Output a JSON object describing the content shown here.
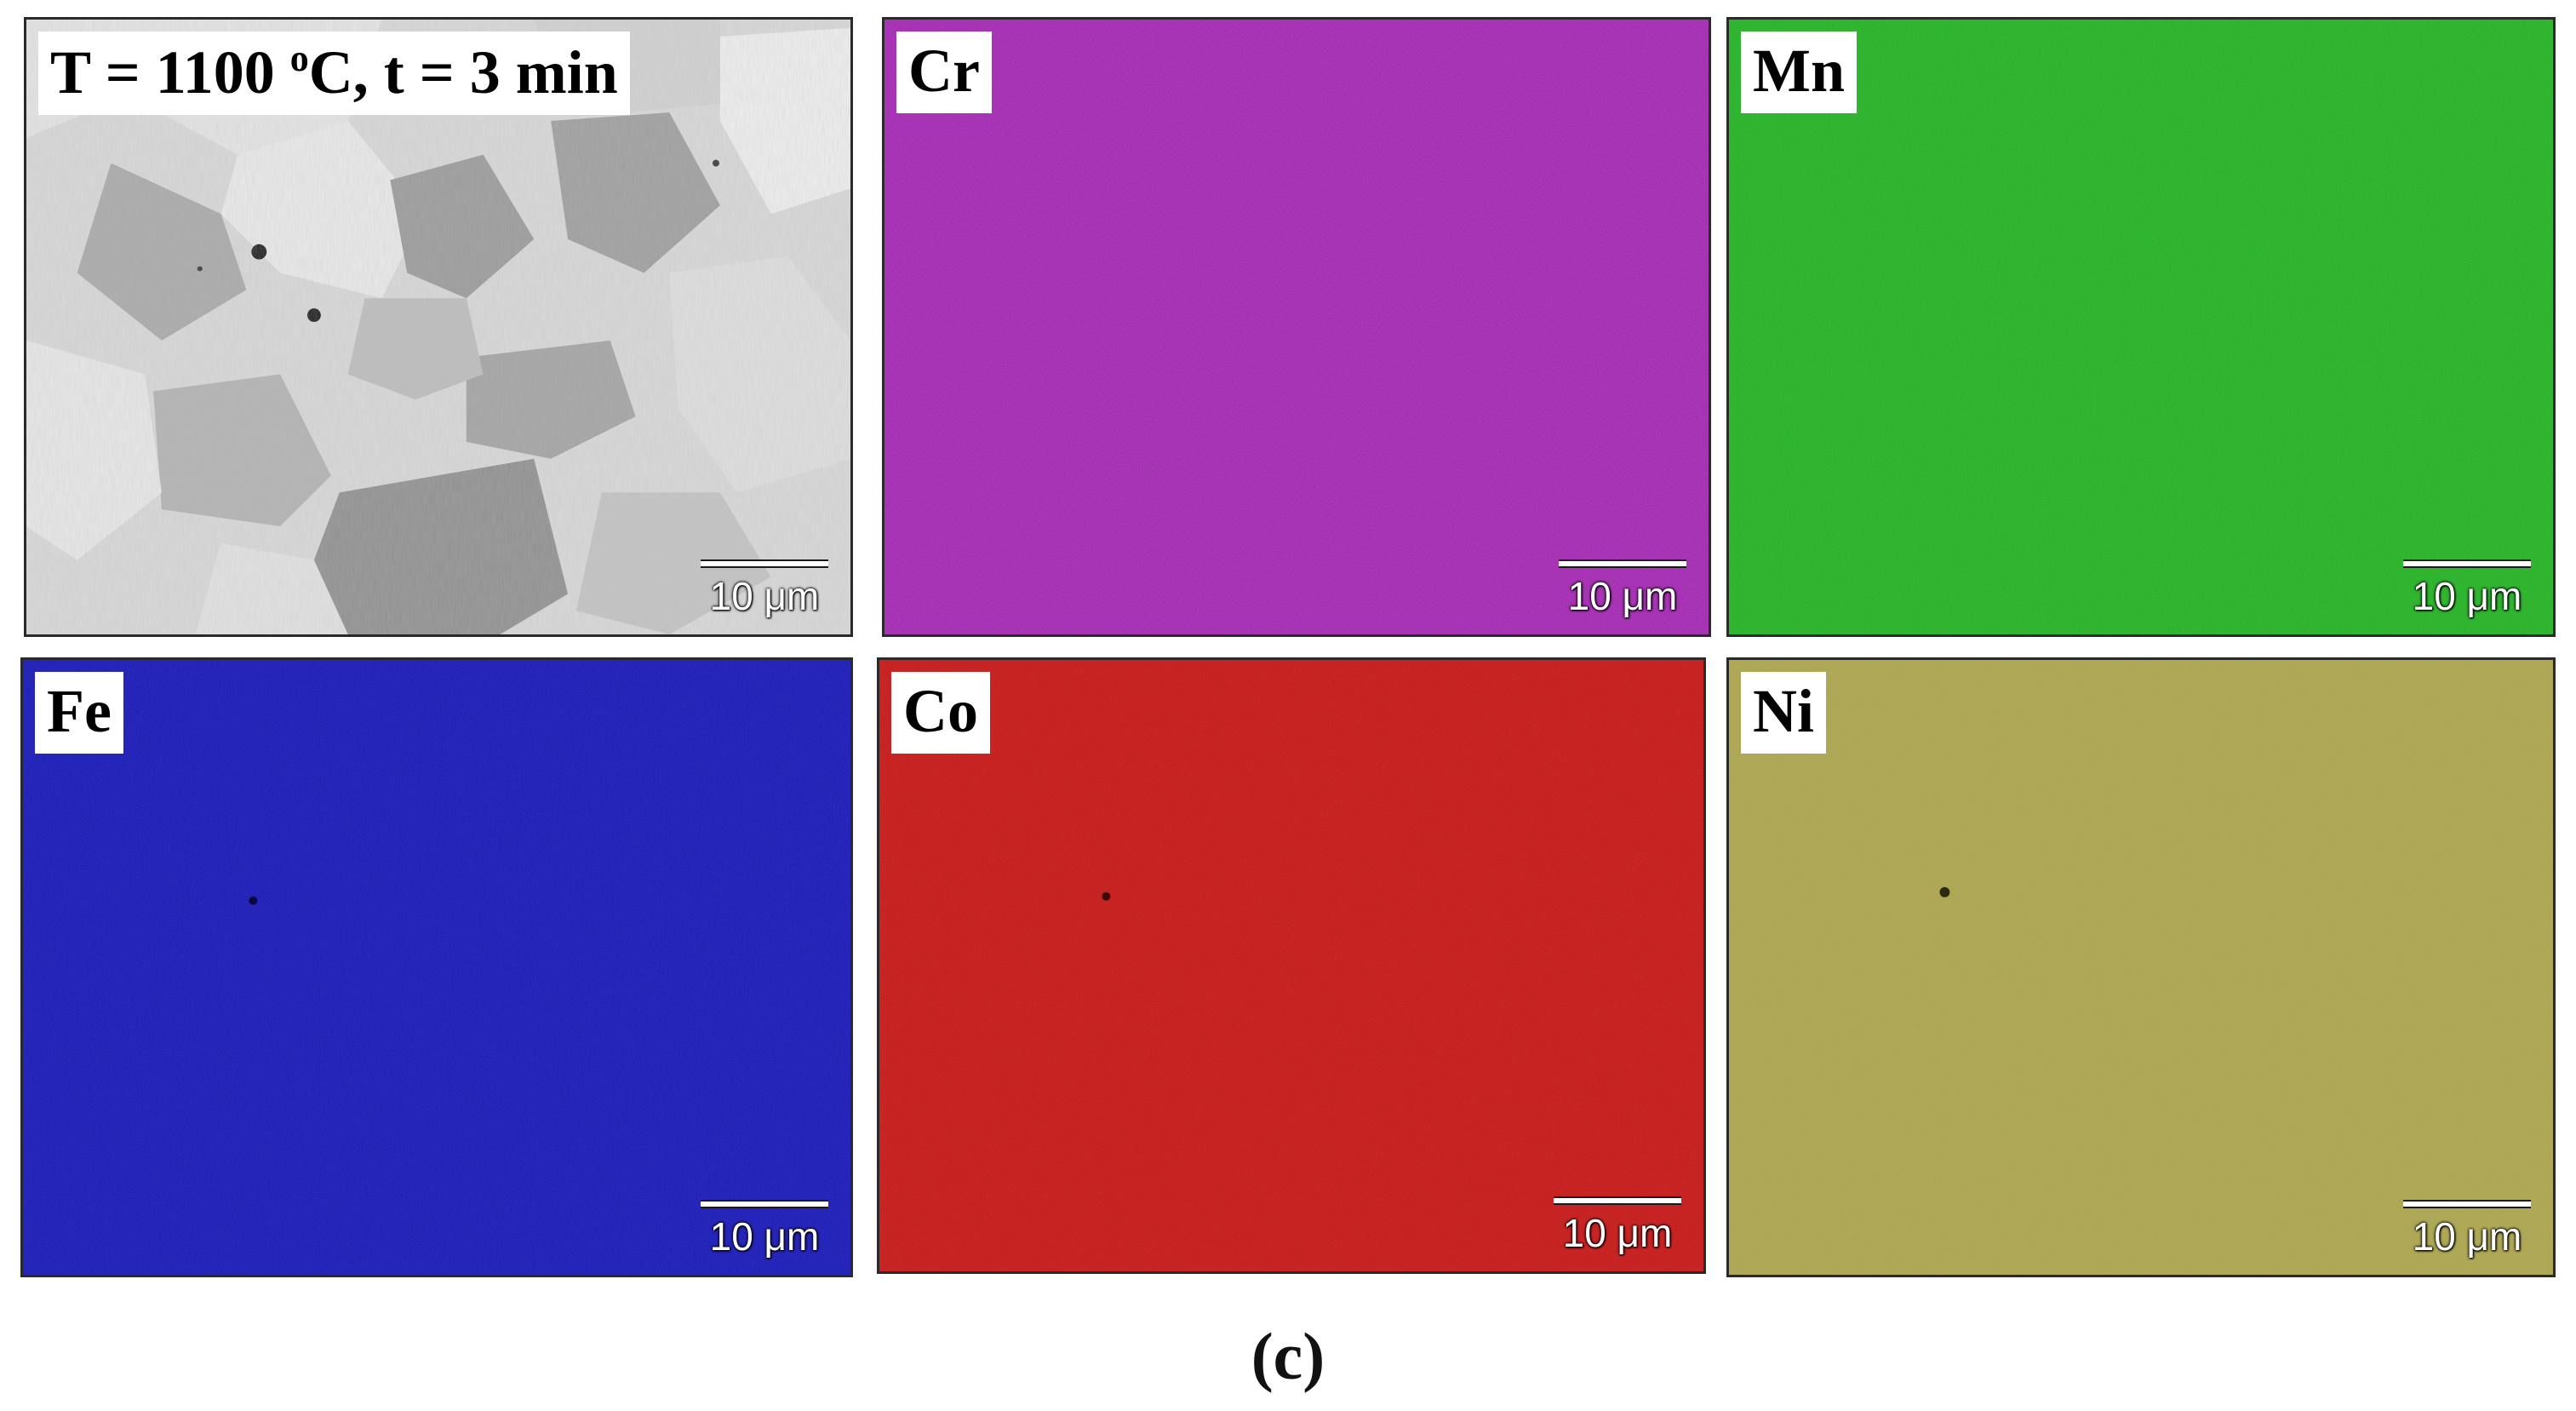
{
  "panels": [
    {
      "id": "sem",
      "label": "T = 1100 ",
      "label_sup": "o",
      "label_tail": "C, t = 3 min",
      "scale": "10 μm",
      "color": "#c8c8c8"
    },
    {
      "id": "cr",
      "label": "Cr",
      "scale": "10 μm",
      "color": "#a11fb0"
    },
    {
      "id": "mn",
      "label": "Mn",
      "scale": "10 μm",
      "color": "#1fae1f"
    },
    {
      "id": "fe",
      "label": "Fe",
      "scale": "10 μm",
      "color": "#1616b4"
    },
    {
      "id": "co",
      "label": "Co",
      "scale": "10 μm",
      "color": "#c41414"
    },
    {
      "id": "ni",
      "label": "Ni",
      "scale": "10 μm",
      "color": "#a9a24a"
    }
  ],
  "caption": "(c)"
}
